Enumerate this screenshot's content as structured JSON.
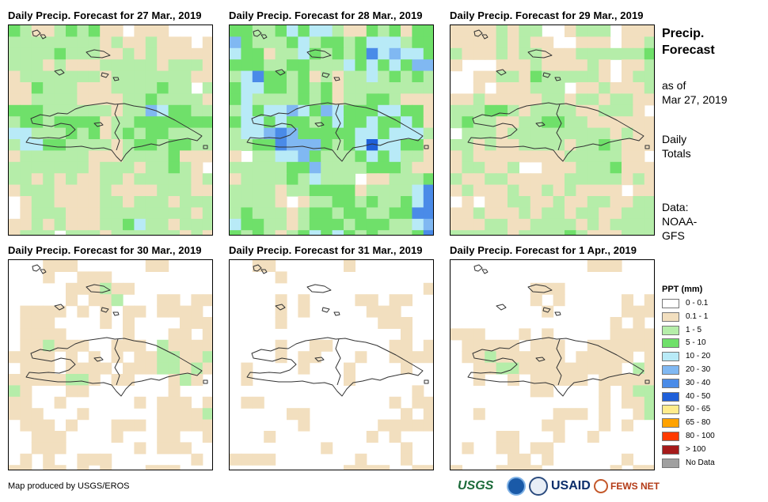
{
  "panels": [
    {
      "title": "Daily Precip. Forecast for 27 Mar., 2019"
    },
    {
      "title": "Daily Precip. Forecast for 28 Mar., 2019"
    },
    {
      "title": "Daily Precip. Forecast for 29 Mar., 2019"
    },
    {
      "title": "Daily Precip. Forecast for 30 Mar., 2019"
    },
    {
      "title": "Daily Precip. Forecast for 31 Mar., 2019"
    },
    {
      "title": "Daily Precip. Forecast for 1 Apr., 2019"
    }
  ],
  "side": {
    "title_line1": "Precip.",
    "title_line2": "Forecast",
    "asof_line1": "as of",
    "asof_line2": "Mar 27, 2019",
    "totals_line1": "Daily",
    "totals_line2": "Totals",
    "data_line1": "Data:",
    "data_line2": "NOAA-",
    "data_line3": "GFS"
  },
  "legend": {
    "title": "PPT (mm)",
    "items": [
      {
        "label": "0 - 0.1",
        "color": "#ffffff"
      },
      {
        "label": "0.1 - 1",
        "color": "#f2dfbf"
      },
      {
        "label": "1 - 5",
        "color": "#b5eda9"
      },
      {
        "label": "5 - 10",
        "color": "#6fe06a"
      },
      {
        "label": "10 - 20",
        "color": "#b8eaf7"
      },
      {
        "label": "20 - 30",
        "color": "#80b8f2"
      },
      {
        "label": "30 - 40",
        "color": "#4a8be8"
      },
      {
        "label": "40 - 50",
        "color": "#1f5fd9"
      },
      {
        "label": "50 - 65",
        "color": "#ffec8c"
      },
      {
        "label": "65 - 80",
        "color": "#ffa200"
      },
      {
        "label": "80 - 100",
        "color": "#ff3a00"
      },
      {
        "label": "> 100",
        "color": "#a51a1a"
      },
      {
        "label": "No Data",
        "color": "#a0a0a0"
      }
    ]
  },
  "footer": {
    "credit": "Map produced by USGS/EROS"
  },
  "logos": {
    "usgs": "USGS",
    "usaid": "USAID",
    "fews": "FEWS NET"
  },
  "colors": {
    "border": "#000000",
    "coastline": "#333333"
  }
}
